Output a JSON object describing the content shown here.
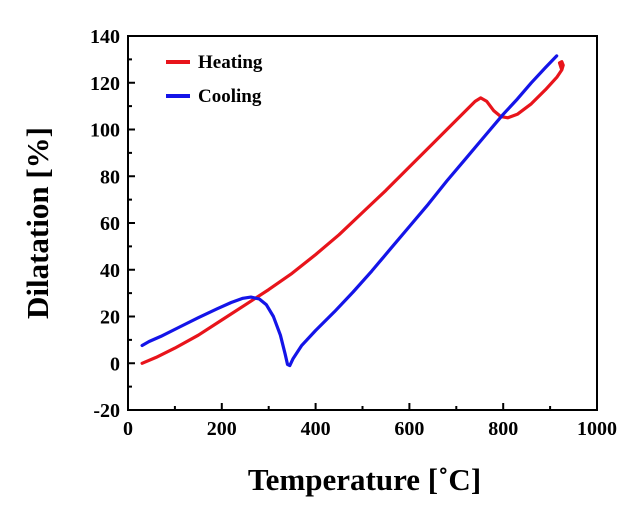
{
  "chart_data": {
    "type": "line",
    "title": "",
    "xlabel": "Temperature [˚C]",
    "ylabel": "Dilatation [%]",
    "xlim": [
      0,
      1000
    ],
    "ylim": [
      -20,
      140
    ],
    "xticks": [
      0,
      200,
      400,
      600,
      800,
      1000
    ],
    "yticks": [
      -20,
      0,
      20,
      40,
      60,
      80,
      100,
      120,
      140
    ],
    "grid": false,
    "legend_position": "top-left",
    "series": [
      {
        "name": "Heating",
        "color": "#e8141b",
        "points": [
          [
            30,
            0
          ],
          [
            60,
            2.5
          ],
          [
            100,
            6.5
          ],
          [
            150,
            12
          ],
          [
            200,
            18.5
          ],
          [
            250,
            25
          ],
          [
            300,
            31.5
          ],
          [
            350,
            38.5
          ],
          [
            400,
            46.5
          ],
          [
            450,
            55
          ],
          [
            500,
            64.5
          ],
          [
            550,
            74
          ],
          [
            600,
            84
          ],
          [
            650,
            94
          ],
          [
            700,
            104
          ],
          [
            740,
            112
          ],
          [
            752,
            113.5
          ],
          [
            765,
            112
          ],
          [
            780,
            108
          ],
          [
            795,
            105.5
          ],
          [
            810,
            105
          ],
          [
            830,
            106.5
          ],
          [
            860,
            111
          ],
          [
            890,
            117
          ],
          [
            915,
            122.5
          ],
          [
            925,
            125.5
          ],
          [
            928,
            127.5
          ],
          [
            925,
            129
          ],
          [
            920,
            128.5
          ],
          [
            924,
            126
          ]
        ]
      },
      {
        "name": "Cooling",
        "color": "#1414e8",
        "points": [
          [
            914,
            131.5
          ],
          [
            890,
            126.5
          ],
          [
            860,
            120
          ],
          [
            830,
            113
          ],
          [
            800,
            106.5
          ],
          [
            760,
            97
          ],
          [
            720,
            87.5
          ],
          [
            680,
            78
          ],
          [
            640,
            68
          ],
          [
            600,
            58.5
          ],
          [
            560,
            49
          ],
          [
            520,
            39.5
          ],
          [
            480,
            30.5
          ],
          [
            440,
            22
          ],
          [
            400,
            14
          ],
          [
            370,
            7.5
          ],
          [
            352,
            2
          ],
          [
            345,
            -1
          ],
          [
            340,
            -0.5
          ],
          [
            335,
            4
          ],
          [
            325,
            12
          ],
          [
            310,
            20
          ],
          [
            295,
            25
          ],
          [
            280,
            27.5
          ],
          [
            262,
            28.3
          ],
          [
            245,
            27.8
          ],
          [
            220,
            26
          ],
          [
            190,
            23.3
          ],
          [
            150,
            19.5
          ],
          [
            110,
            15.5
          ],
          [
            70,
            11.5
          ],
          [
            45,
            9.3
          ],
          [
            30,
            7.6
          ]
        ]
      }
    ]
  }
}
